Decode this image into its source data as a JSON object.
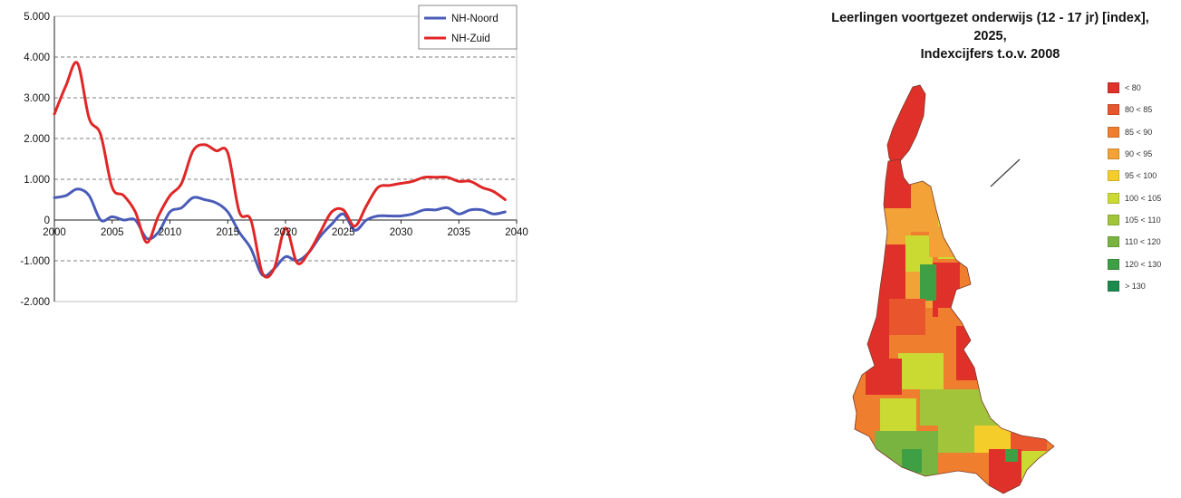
{
  "chart_data": {
    "type": "line",
    "title": "",
    "xlabel": "",
    "ylabel": "",
    "x": [
      2000,
      2001,
      2002,
      2003,
      2004,
      2005,
      2006,
      2007,
      2008,
      2009,
      2010,
      2011,
      2012,
      2013,
      2014,
      2015,
      2016,
      2017,
      2018,
      2019,
      2020,
      2021,
      2022,
      2023,
      2024,
      2025,
      2026,
      2027,
      2028,
      2029,
      2030,
      2031,
      2032,
      2033,
      2034,
      2035,
      2036,
      2037,
      2038,
      2039
    ],
    "xlim": [
      2000,
      2040
    ],
    "ylim": [
      -2000,
      5000
    ],
    "x_ticks": [
      "2000",
      "2005",
      "2010",
      "2015",
      "2020",
      "2025",
      "2030",
      "2035",
      "2040"
    ],
    "y_ticks": [
      "5.000",
      "4.000",
      "3.000",
      "2.000",
      "1.000",
      "0",
      "-1.000",
      "-2.000"
    ],
    "grid": true,
    "legend_position": "top-right",
    "series": [
      {
        "name": "NH-Noord",
        "color": "#4a5cb8",
        "values": [
          550,
          600,
          760,
          600,
          0,
          80,
          0,
          0,
          -450,
          -300,
          200,
          300,
          550,
          500,
          420,
          200,
          -300,
          -700,
          -1350,
          -1200,
          -900,
          -1000,
          -800,
          -400,
          -100,
          150,
          -250,
          0,
          100,
          100,
          100,
          150,
          250,
          250,
          300,
          150,
          250,
          250,
          150,
          200
        ]
      },
      {
        "name": "NH-Zuid",
        "color": "#e02626",
        "values": [
          2600,
          3300,
          3850,
          2500,
          2100,
          800,
          600,
          200,
          -550,
          100,
          600,
          900,
          1700,
          1850,
          1700,
          1650,
          200,
          0,
          -1300,
          -1200,
          -200,
          -1050,
          -800,
          -300,
          200,
          250,
          -150,
          350,
          800,
          850,
          900,
          950,
          1050,
          1050,
          1050,
          950,
          950,
          800,
          700,
          500
        ]
      }
    ]
  },
  "map": {
    "title_lines": [
      "Leerlingen voortgezet onderwijs (12 - 17 jr) [index],",
      "2025,",
      "Indexcijfers t.o.v. 2008"
    ],
    "legend": [
      {
        "label": "< 80",
        "color": "#e0302a"
      },
      {
        "label": "80 < 85",
        "color": "#e9552c"
      },
      {
        "label": "85 < 90",
        "color": "#ef7e2e"
      },
      {
        "label": "90 < 95",
        "color": "#f2a236"
      },
      {
        "label": "95 < 100",
        "color": "#f5cd2b"
      },
      {
        "label": "100 < 105",
        "color": "#cbd933"
      },
      {
        "label": "105 < 110",
        "color": "#a2c43b"
      },
      {
        "label": "110 < 120",
        "color": "#79b441"
      },
      {
        "label": "120 < 130",
        "color": "#3f9f45"
      },
      {
        "label": "> 130",
        "color": "#1d8a4d"
      }
    ]
  }
}
